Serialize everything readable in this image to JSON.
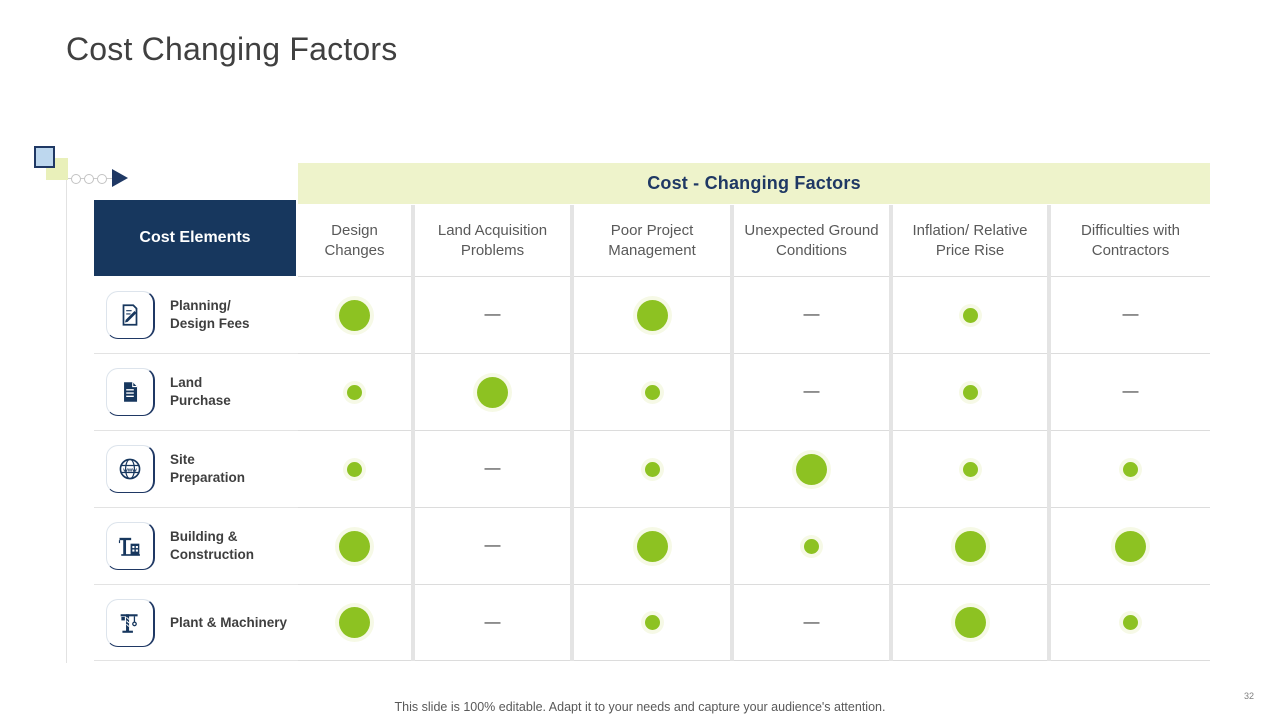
{
  "slide": {
    "title": "Cost Changing Factors",
    "footer": "This slide is 100% editable. Adapt it to your needs and capture your audience's attention.",
    "page_number": "32"
  },
  "colors": {
    "accent_green": "#8dc222",
    "navy": "#17375e",
    "band_bg": "#eef3cb"
  },
  "chart_data": {
    "type": "table",
    "title": "Cost - Changing Factors",
    "row_header": "Cost Elements",
    "columns": [
      "Design Changes",
      "Land Acquisition Problems",
      "Poor Project Management",
      "Unexpected Ground Conditions",
      "Inflation/  Relative Price Rise",
      "Difficulties with Contractors"
    ],
    "rows": [
      {
        "label": "Planning/\nDesign Fees",
        "icon": "document-edit-icon",
        "cells": [
          "large",
          "dash",
          "large",
          "dash",
          "small",
          "dash"
        ]
      },
      {
        "label": "Land\nPurchase",
        "icon": "document-icon",
        "cells": [
          "small",
          "large",
          "small",
          "dash",
          "small",
          "dash"
        ]
      },
      {
        "label": "Site\nPreparation",
        "icon": "globe-icon",
        "cells": [
          "small",
          "dash",
          "small",
          "large",
          "small",
          "small"
        ]
      },
      {
        "label": "Building &\nConstruction",
        "icon": "crane-building-icon",
        "cells": [
          "large",
          "dash",
          "large",
          "small",
          "large",
          "large"
        ]
      },
      {
        "label": "Plant & Machinery",
        "icon": "tower-crane-icon",
        "cells": [
          "large",
          "dash",
          "small",
          "dash",
          "large",
          "small"
        ]
      }
    ],
    "value_encoding": {
      "large": "large dot",
      "small": "small dot",
      "dash": "—"
    }
  }
}
